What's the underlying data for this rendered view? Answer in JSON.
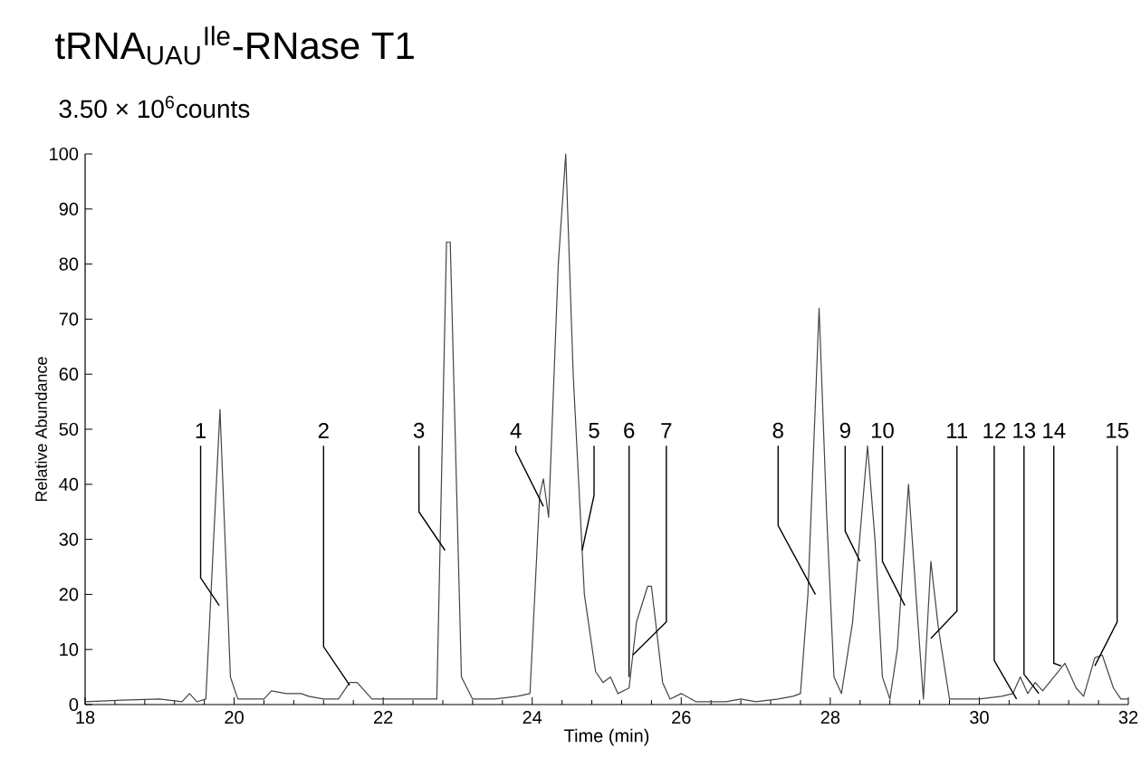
{
  "chart_data": {
    "type": "line",
    "title": "tRNA$_{UAU}$$^{Ile}$-RNase T1",
    "subtitle": "3.50 × 10$^{6}$counts",
    "xlabel": "Time (min)",
    "ylabel": "Relative Abundance",
    "x": [
      18.0,
      18.5,
      19.0,
      19.3,
      19.4,
      19.5,
      19.62,
      19.81,
      19.95,
      20.05,
      20.2,
      20.4,
      20.5,
      20.7,
      20.9,
      21.0,
      21.2,
      21.4,
      21.55,
      21.65,
      21.85,
      22.0,
      22.3,
      22.6,
      22.72,
      22.85,
      22.9,
      23.05,
      23.2,
      23.5,
      23.8,
      23.97,
      24.1,
      24.15,
      24.22,
      24.35,
      24.45,
      24.55,
      24.7,
      24.85,
      24.95,
      25.05,
      25.15,
      25.3,
      25.4,
      25.55,
      25.6,
      25.75,
      25.85,
      26.0,
      26.2,
      26.6,
      26.8,
      27.0,
      27.3,
      27.5,
      27.6,
      27.7,
      27.85,
      27.95,
      28.05,
      28.15,
      28.3,
      28.5,
      28.6,
      28.7,
      28.8,
      28.9,
      29.05,
      29.15,
      29.25,
      29.35,
      29.45,
      29.6,
      29.8,
      30.0,
      30.3,
      30.45,
      30.55,
      30.65,
      30.75,
      30.85,
      31.0,
      31.15,
      31.3,
      31.4,
      31.55,
      31.65,
      31.8,
      31.9,
      32.0
    ],
    "series": [
      {
        "color": "#444444",
        "values": [
          0.5,
          0.8,
          1,
          0.5,
          2,
          0.5,
          1,
          53.6,
          5,
          1,
          1,
          1,
          2.5,
          2,
          2,
          1.5,
          1,
          1,
          4,
          4,
          1,
          1,
          1,
          1,
          1,
          84,
          84,
          5,
          1,
          1,
          1.5,
          2,
          38,
          41,
          34,
          80,
          100,
          60,
          20,
          6,
          4,
          5,
          2,
          3,
          15,
          21.5,
          21.5,
          4,
          1,
          2,
          0.5,
          0.5,
          1,
          0.5,
          1,
          1.5,
          2,
          20,
          72,
          35,
          5,
          2,
          15,
          47,
          30,
          5,
          1,
          10,
          40,
          20,
          1,
          26,
          14,
          1,
          1,
          1,
          1.5,
          2,
          5,
          2,
          4,
          2.5,
          5,
          7.5,
          3,
          1.5,
          8.5,
          9,
          3,
          1,
          1
        ]
      }
    ],
    "xlim": [
      18,
      32
    ],
    "ylim": [
      0,
      100
    ],
    "xticks": [
      18,
      20,
      22,
      24,
      26,
      28,
      30,
      32
    ],
    "yticks": [
      0,
      10,
      20,
      30,
      40,
      50,
      60,
      70,
      80,
      90,
      100
    ],
    "annotations": [
      {
        "text": "1",
        "x": 19.8,
        "y": 18
      },
      {
        "text": "2",
        "x": 21.55,
        "y": 3.5
      },
      {
        "text": "3",
        "x": 22.83,
        "y": 28
      },
      {
        "text": "4",
        "x": 24.15,
        "y": 36
      },
      {
        "text": "5",
        "x": 24.67,
        "y": 28
      },
      {
        "text": "6",
        "x": 25.3,
        "y": 5
      },
      {
        "text": "7",
        "x": 25.35,
        "y": 9
      },
      {
        "text": "8",
        "x": 27.8,
        "y": 20
      },
      {
        "text": "9",
        "x": 28.4,
        "y": 26
      },
      {
        "text": "10",
        "x": 29.0,
        "y": 18
      },
      {
        "text": "11",
        "x": 29.35,
        "y": 12
      },
      {
        "text": "12",
        "x": 30.5,
        "y": 1
      },
      {
        "text": "13",
        "x": 30.8,
        "y": 2
      },
      {
        "text": "14",
        "x": 31.1,
        "y": 7
      },
      {
        "text": "15",
        "x": 31.55,
        "y": 7
      }
    ]
  }
}
